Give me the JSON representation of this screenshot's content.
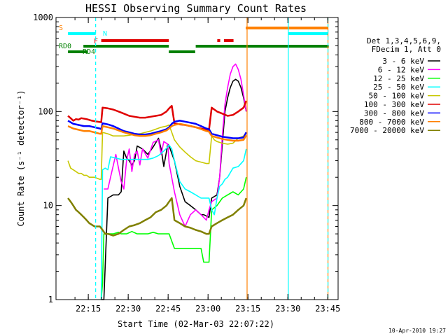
{
  "chart_data": {
    "type": "line",
    "title": "HESSI Observing Summary Count Rates",
    "xlabel": "Start Time (02-Mar-03 22:07:22)",
    "ylabel": "Count Rate (s⁻¹ detector⁻¹)",
    "y_scale": "log",
    "ylim": [
      1,
      1000
    ],
    "xlim_minutes": [
      0,
      39.1
    ],
    "x_tick_labels": [
      "22:15",
      "22:30",
      "22:45",
      "23:00",
      "23:15",
      "23:30",
      "23:45"
    ],
    "x_tick_minutes": [
      7.63,
      22.63,
      37.63,
      52.63,
      67.63,
      82.63,
      97.63
    ],
    "y_tick_labels": [
      "1",
      "10",
      "100",
      "1000"
    ],
    "y_tick_values": [
      1,
      10,
      100,
      1000
    ],
    "timestamp": "10-Apr-2010 19:27",
    "legend_header": [
      "Det 1,3,4,5,6,9,",
      "FDecim 1, Att 0"
    ],
    "legend_position": "right",
    "series": [
      {
        "name": "3 - 6 keV",
        "color": "#000000",
        "x": [
          12.5,
          13.5,
          15,
          17,
          19,
          20,
          21,
          22,
          23,
          24,
          25,
          26,
          28,
          30,
          32,
          34,
          35,
          36,
          37.5,
          38,
          40,
          42,
          44,
          46,
          48,
          50,
          51,
          53,
          54,
          56,
          57,
          58,
          59,
          60,
          61,
          62,
          63,
          64,
          65,
          66,
          67
        ],
        "y": [
          1,
          1,
          12,
          13,
          13,
          14,
          38,
          32,
          30,
          27,
          30,
          43,
          40,
          35,
          42,
          52,
          40,
          26,
          45,
          43,
          30,
          16,
          11,
          10,
          9,
          8,
          8,
          7.5,
          12,
          13,
          20,
          45,
          100,
          140,
          180,
          210,
          220,
          210,
          180,
          140,
          100
        ]
      },
      {
        "name": "6 - 12 keV",
        "color": "#ff00ff",
        "x": [
          13.5,
          15,
          16,
          18,
          19,
          20,
          21,
          22,
          23,
          24,
          25,
          26,
          27,
          28,
          30,
          32,
          34,
          35,
          36,
          37.5,
          38,
          40,
          42,
          44,
          46,
          48,
          50,
          52,
          53,
          54,
          56,
          57,
          58,
          59,
          60,
          61,
          62,
          63,
          64,
          65,
          66,
          67
        ],
        "y": [
          15,
          15,
          20,
          35,
          25,
          18,
          15,
          30,
          40,
          23,
          35,
          38,
          27,
          40,
          32,
          47,
          50,
          35,
          48,
          45,
          28,
          14,
          8,
          6,
          8,
          9,
          8,
          7,
          9,
          11,
          12,
          20,
          55,
          120,
          180,
          250,
          300,
          320,
          280,
          220,
          150,
          100
        ]
      },
      {
        "name": "12 - 25 keV",
        "color": "#00ff00",
        "x": [
          12.5,
          13,
          13.5,
          15,
          17,
          19,
          20,
          22,
          24,
          26,
          28,
          30,
          32,
          34,
          36,
          37.5,
          38,
          40,
          42,
          44,
          46,
          48,
          50,
          51,
          52,
          53,
          54,
          56,
          58,
          60,
          62,
          64,
          66,
          67
        ],
        "y": [
          1,
          1.5,
          5,
          5,
          5,
          5.2,
          5,
          5,
          5.3,
          5,
          5,
          5,
          5.2,
          5,
          5,
          5,
          5,
          3.5,
          3.5,
          3.5,
          3.5,
          3.5,
          3.5,
          2.5,
          2.5,
          2.5,
          9,
          10,
          12,
          13,
          14,
          13,
          15,
          20
        ]
      },
      {
        "name": "25 - 50 keV",
        "color": "#00ffff",
        "x": [
          12.5,
          13,
          14,
          15,
          16,
          18,
          20,
          22,
          24,
          26,
          28,
          30,
          32,
          34,
          36,
          37.5,
          38,
          39,
          40,
          42,
          44,
          46,
          48,
          50,
          52,
          53,
          54,
          55,
          56,
          57,
          58,
          59,
          60,
          62,
          64,
          66,
          67
        ],
        "y": [
          1,
          24,
          25,
          24,
          33,
          32,
          31,
          31,
          31,
          31,
          31,
          31,
          32,
          34,
          38,
          42,
          44,
          40,
          30,
          18,
          15,
          14,
          13,
          12,
          12,
          12,
          9,
          8,
          12,
          16,
          17,
          19,
          20,
          25,
          26,
          30,
          40
        ]
      },
      {
        "name": "50 - 100 keV",
        "color": "#c8c800",
        "x": [
          0,
          1,
          2,
          3,
          4,
          5,
          6,
          7,
          8,
          10,
          12,
          12.5,
          13,
          15,
          17,
          19,
          21,
          23,
          25,
          27,
          29,
          31,
          33,
          35,
          37,
          38,
          39,
          40,
          42,
          44,
          46,
          48,
          50,
          52,
          53,
          54,
          55,
          56,
          58,
          60,
          62,
          64,
          66,
          67
        ],
        "y": [
          30,
          25,
          24,
          23,
          22,
          22,
          21,
          21,
          20,
          20,
          19,
          19,
          60,
          58,
          55,
          55,
          55,
          56,
          57,
          58,
          60,
          62,
          65,
          68,
          70,
          72,
          60,
          50,
          42,
          37,
          33,
          30,
          29,
          28,
          28,
          55,
          50,
          48,
          46,
          45,
          46,
          52,
          55,
          60
        ]
      },
      {
        "name": "100 - 300 keV",
        "color": "#e00000",
        "x": [
          0,
          1,
          2,
          3,
          4,
          5,
          7,
          9,
          11,
          12.5,
          13,
          15,
          17,
          19,
          21,
          23,
          25,
          27,
          29,
          31,
          33,
          35,
          37,
          38,
          39,
          40,
          42,
          44,
          46,
          48,
          50,
          52,
          53,
          54,
          55,
          56,
          58,
          60,
          62,
          64,
          66,
          67
        ],
        "y": [
          90,
          85,
          80,
          83,
          82,
          85,
          83,
          80,
          78,
          77,
          110,
          108,
          105,
          100,
          95,
          90,
          88,
          86,
          86,
          88,
          90,
          92,
          100,
          108,
          115,
          75,
          73,
          72,
          70,
          68,
          66,
          64,
          64,
          110,
          105,
          100,
          95,
          90,
          92,
          100,
          110,
          130
        ]
      },
      {
        "name": "300 - 800 keV",
        "color": "#0000ff",
        "x": [
          0,
          2,
          4,
          6,
          8,
          10,
          12,
          12.5,
          13,
          15,
          17,
          19,
          21,
          23,
          25,
          27,
          29,
          31,
          33,
          35,
          37,
          38,
          39,
          40,
          42,
          44,
          46,
          48,
          50,
          52,
          53,
          54,
          56,
          58,
          60,
          62,
          64,
          66,
          67
        ],
        "y": [
          80,
          74,
          72,
          70,
          70,
          68,
          66,
          65,
          75,
          73,
          70,
          66,
          62,
          60,
          58,
          57,
          57,
          58,
          60,
          62,
          65,
          68,
          74,
          78,
          80,
          78,
          76,
          74,
          70,
          66,
          65,
          58,
          56,
          54,
          53,
          52,
          52,
          53,
          60
        ]
      },
      {
        "name": "800 - 7000 keV",
        "color": "#ff8000",
        "x": [
          0,
          2,
          4,
          6,
          8,
          10,
          12,
          12.5,
          13,
          15,
          17,
          19,
          21,
          23,
          25,
          27,
          29,
          31,
          33,
          35,
          37,
          38,
          39,
          40,
          42,
          44,
          46,
          48,
          50,
          52,
          53,
          54,
          56,
          58,
          60,
          62,
          64,
          66,
          67
        ],
        "y": [
          70,
          66,
          64,
          62,
          62,
          60,
          58,
          58,
          70,
          68,
          66,
          63,
          60,
          58,
          56,
          55,
          55,
          56,
          58,
          60,
          63,
          66,
          70,
          72,
          74,
          72,
          70,
          68,
          65,
          62,
          61,
          55,
          53,
          51,
          50,
          49,
          49,
          50,
          56
        ]
      },
      {
        "name": "7000 - 20000 keV",
        "color": "#808000",
        "x": [
          0,
          1,
          2,
          3,
          4,
          5,
          6,
          7,
          8,
          10,
          12,
          13,
          14,
          15,
          17,
          19,
          21,
          23,
          25,
          27,
          29,
          31,
          33,
          35,
          37,
          38,
          39,
          40,
          42,
          44,
          46,
          48,
          50,
          52,
          53,
          54,
          56,
          58,
          60,
          62,
          64,
          66,
          67
        ],
        "y": [
          12,
          11,
          10,
          9,
          8.5,
          8,
          7.5,
          7,
          6.5,
          6,
          6,
          5.5,
          5,
          5,
          4.8,
          5,
          5.5,
          6,
          6.2,
          6.5,
          7,
          7.5,
          8.5,
          9,
          10,
          11,
          12,
          7,
          6.5,
          6,
          5.8,
          5.5,
          5.3,
          5,
          5,
          6,
          6.5,
          7,
          7.5,
          8,
          9,
          10,
          12
        ]
      }
    ],
    "state_bars": [
      {
        "label": "S",
        "color": "#ff8000"
      },
      {
        "label": "N",
        "color": "#00ffff"
      },
      {
        "label": "F",
        "color": "#e00000"
      },
      {
        "label": "RD0",
        "color": "#008000"
      },
      {
        "label": "RD4",
        "color": "#008000"
      }
    ],
    "state_bar_segments": [
      {
        "row": 0,
        "color": "#ff8000",
        "x": [
          66.8,
          97.7
        ]
      },
      {
        "row": 1,
        "color": "#00ffff",
        "x": [
          0,
          10.4
        ]
      },
      {
        "row": 1,
        "color": "#00ffff",
        "x": [
          82.8,
          97.7
        ]
      },
      {
        "row": 2,
        "color": "#e00000",
        "x": [
          12.5,
          37.9
        ]
      },
      {
        "row": 2,
        "color": "#e00000",
        "x": [
          56.1,
          57.2
        ]
      },
      {
        "row": 2,
        "color": "#e00000",
        "x": [
          58.6,
          62.2
        ]
      },
      {
        "row": 3,
        "color": "#008000",
        "x": [
          5.8,
          37.9
        ]
      },
      {
        "row": 3,
        "color": "#008000",
        "x": [
          48,
          98
        ]
      },
      {
        "row": 4,
        "color": "#008000",
        "x": [
          0,
          7.3
        ]
      },
      {
        "row": 4,
        "color": "#008000",
        "x": [
          37.9,
          47.8
        ]
      }
    ],
    "vertical_markers": [
      {
        "x": 10.4,
        "color": "#00ffff",
        "style": "dashed"
      },
      {
        "x": 67.3,
        "color": "#ff8000",
        "style": "solid"
      },
      {
        "x": 82.8,
        "color": "#00ffff",
        "style": "solid"
      },
      {
        "x": 97.7,
        "color": "#ff8000",
        "style": "solid"
      },
      {
        "x": 97.7,
        "color": "#00ffff",
        "style": "dashed"
      }
    ]
  }
}
